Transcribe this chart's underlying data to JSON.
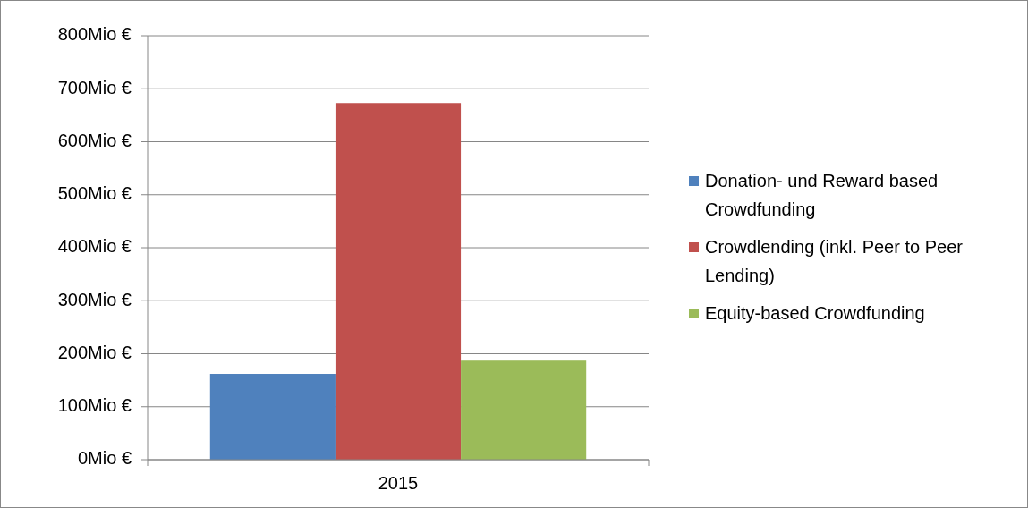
{
  "chart_data": {
    "type": "bar",
    "categories": [
      "2015"
    ],
    "series": [
      {
        "name": "Donation- und Reward based Crowdfunding",
        "color": "#4f81bd",
        "values": [
          162
        ]
      },
      {
        "name": "Crowdlending (inkl. Peer to Peer Lending)",
        "color": "#c0504d",
        "values": [
          673
        ]
      },
      {
        "name": "Equity-based Crowdfunding",
        "color": "#9bbb59",
        "values": [
          187
        ]
      }
    ],
    "ylim": [
      0,
      800
    ],
    "yticks": [
      {
        "value": 0,
        "label": "0Mio €"
      },
      {
        "value": 100,
        "label": "100Mio €"
      },
      {
        "value": 200,
        "label": "200Mio €"
      },
      {
        "value": 300,
        "label": "300Mio €"
      },
      {
        "value": 400,
        "label": "400Mio €"
      },
      {
        "value": 500,
        "label": "500Mio €"
      },
      {
        "value": 600,
        "label": "600Mio €"
      },
      {
        "value": 700,
        "label": "700Mio €"
      },
      {
        "value": 800,
        "label": "800Mio €"
      }
    ],
    "grid": "y",
    "legend": "right"
  }
}
